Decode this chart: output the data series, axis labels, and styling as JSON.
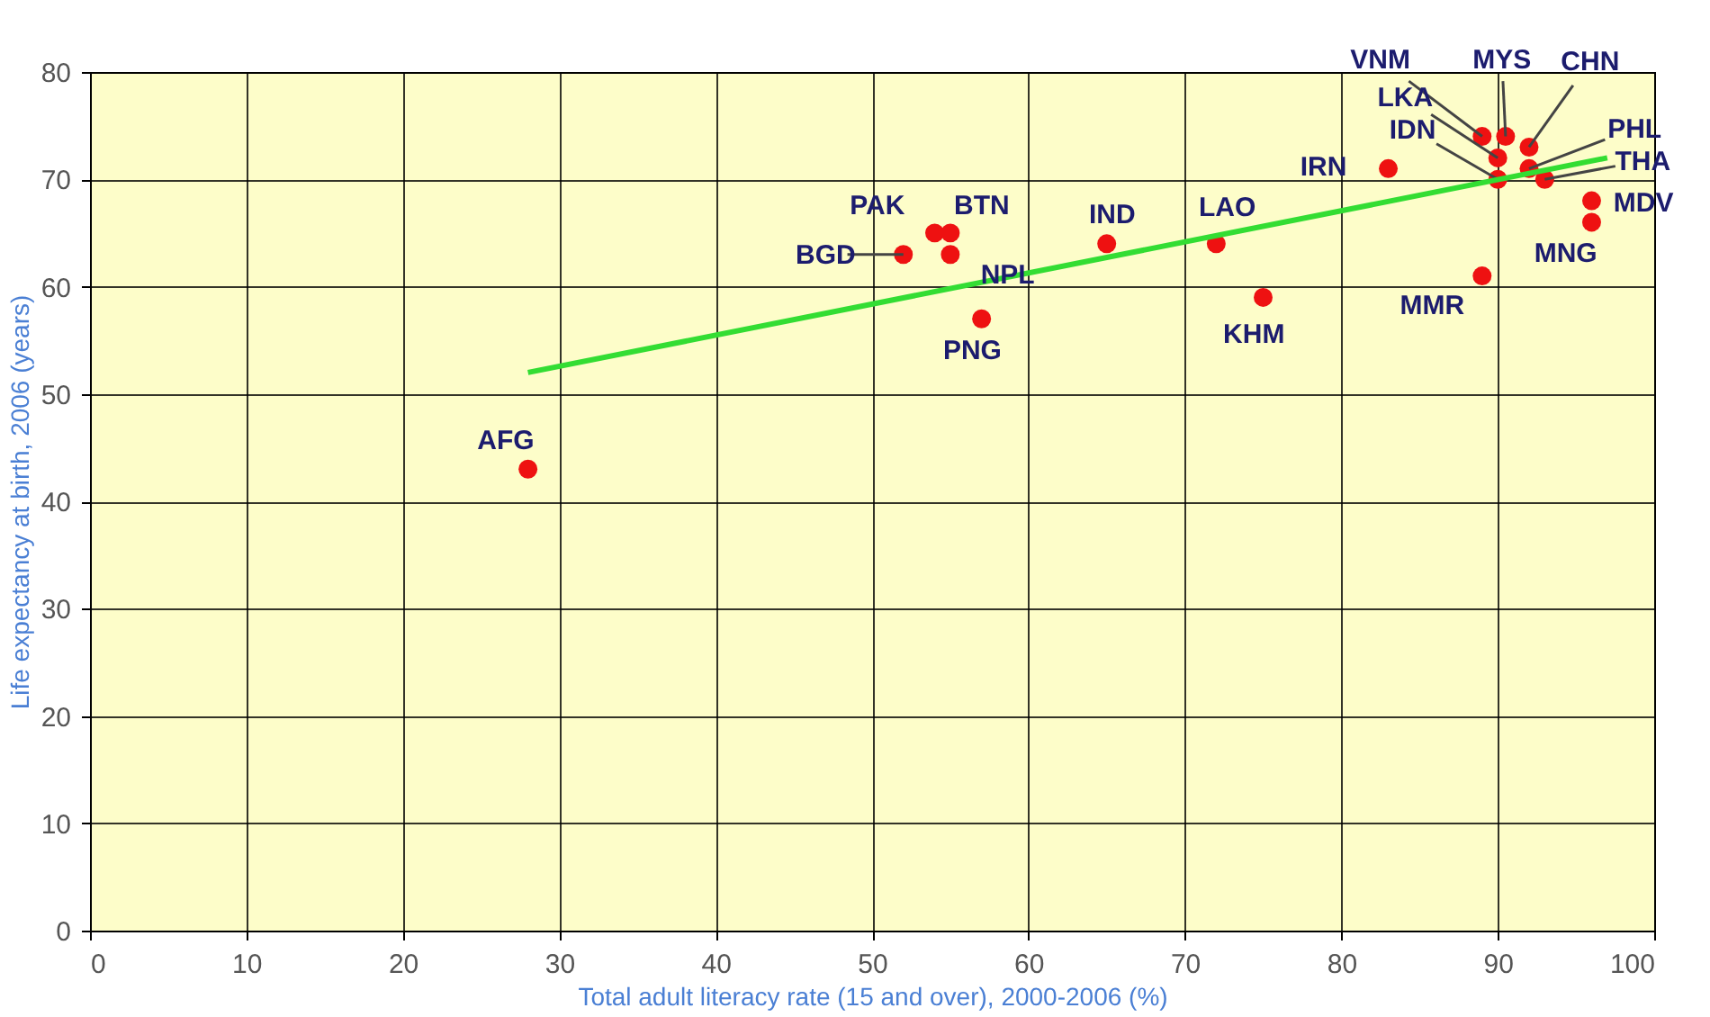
{
  "chart_data": {
    "type": "scatter",
    "xlabel": "Total adult literacy rate (15 and over), 2000-2006 (%)",
    "ylabel": "Life expectancy at birth, 2006 (years)",
    "xlim": [
      0,
      100
    ],
    "ylim": [
      0,
      80
    ],
    "xticks": [
      0,
      10,
      20,
      30,
      40,
      50,
      60,
      70,
      80,
      90,
      100
    ],
    "yticks": [
      0,
      10,
      20,
      30,
      40,
      50,
      60,
      70,
      80
    ],
    "grid": true,
    "marker": "circle",
    "series": [
      {
        "color": "#ee1111",
        "x": [
          28,
          52,
          54,
          55,
          55,
          57,
          65,
          72,
          75,
          83,
          89,
          89,
          90.5,
          92,
          90,
          90,
          92,
          93,
          96,
          96
        ],
        "values": [
          43,
          63,
          65,
          65,
          63,
          57,
          64,
          64,
          59,
          71,
          61,
          74,
          74,
          73,
          72,
          70,
          71,
          70,
          68,
          66
        ]
      },
      {
        "type": "line",
        "marker": "none",
        "color": "#33dd33",
        "x": [
          28,
          97
        ],
        "values": [
          52,
          72
        ]
      }
    ],
    "annotations": [
      {
        "text": "AFG",
        "x": 28,
        "y": 43
      },
      {
        "text": "BGD",
        "x": 52,
        "y": 63
      },
      {
        "text": "PAK",
        "x": 54,
        "y": 65
      },
      {
        "text": "BTN",
        "x": 55,
        "y": 65
      },
      {
        "text": "NPL",
        "x": 55,
        "y": 63
      },
      {
        "text": "PNG",
        "x": 57,
        "y": 57
      },
      {
        "text": "IND",
        "x": 65,
        "y": 64
      },
      {
        "text": "LAO",
        "x": 72,
        "y": 64
      },
      {
        "text": "KHM",
        "x": 75,
        "y": 59
      },
      {
        "text": "IRN",
        "x": 83,
        "y": 71
      },
      {
        "text": "MMR",
        "x": 89,
        "y": 61
      },
      {
        "text": "VNM",
        "x": 89,
        "y": 74
      },
      {
        "text": "MYS",
        "x": 90.5,
        "y": 74
      },
      {
        "text": "CHN",
        "x": 92,
        "y": 73
      },
      {
        "text": "LKA",
        "x": 90,
        "y": 72
      },
      {
        "text": "IDN",
        "x": 90,
        "y": 70
      },
      {
        "text": "PHL",
        "x": 92,
        "y": 71
      },
      {
        "text": "THA",
        "x": 93,
        "y": 70
      },
      {
        "text": "MDV",
        "x": 96,
        "y": 68
      },
      {
        "text": "MNG",
        "x": 96,
        "y": 66
      }
    ]
  }
}
